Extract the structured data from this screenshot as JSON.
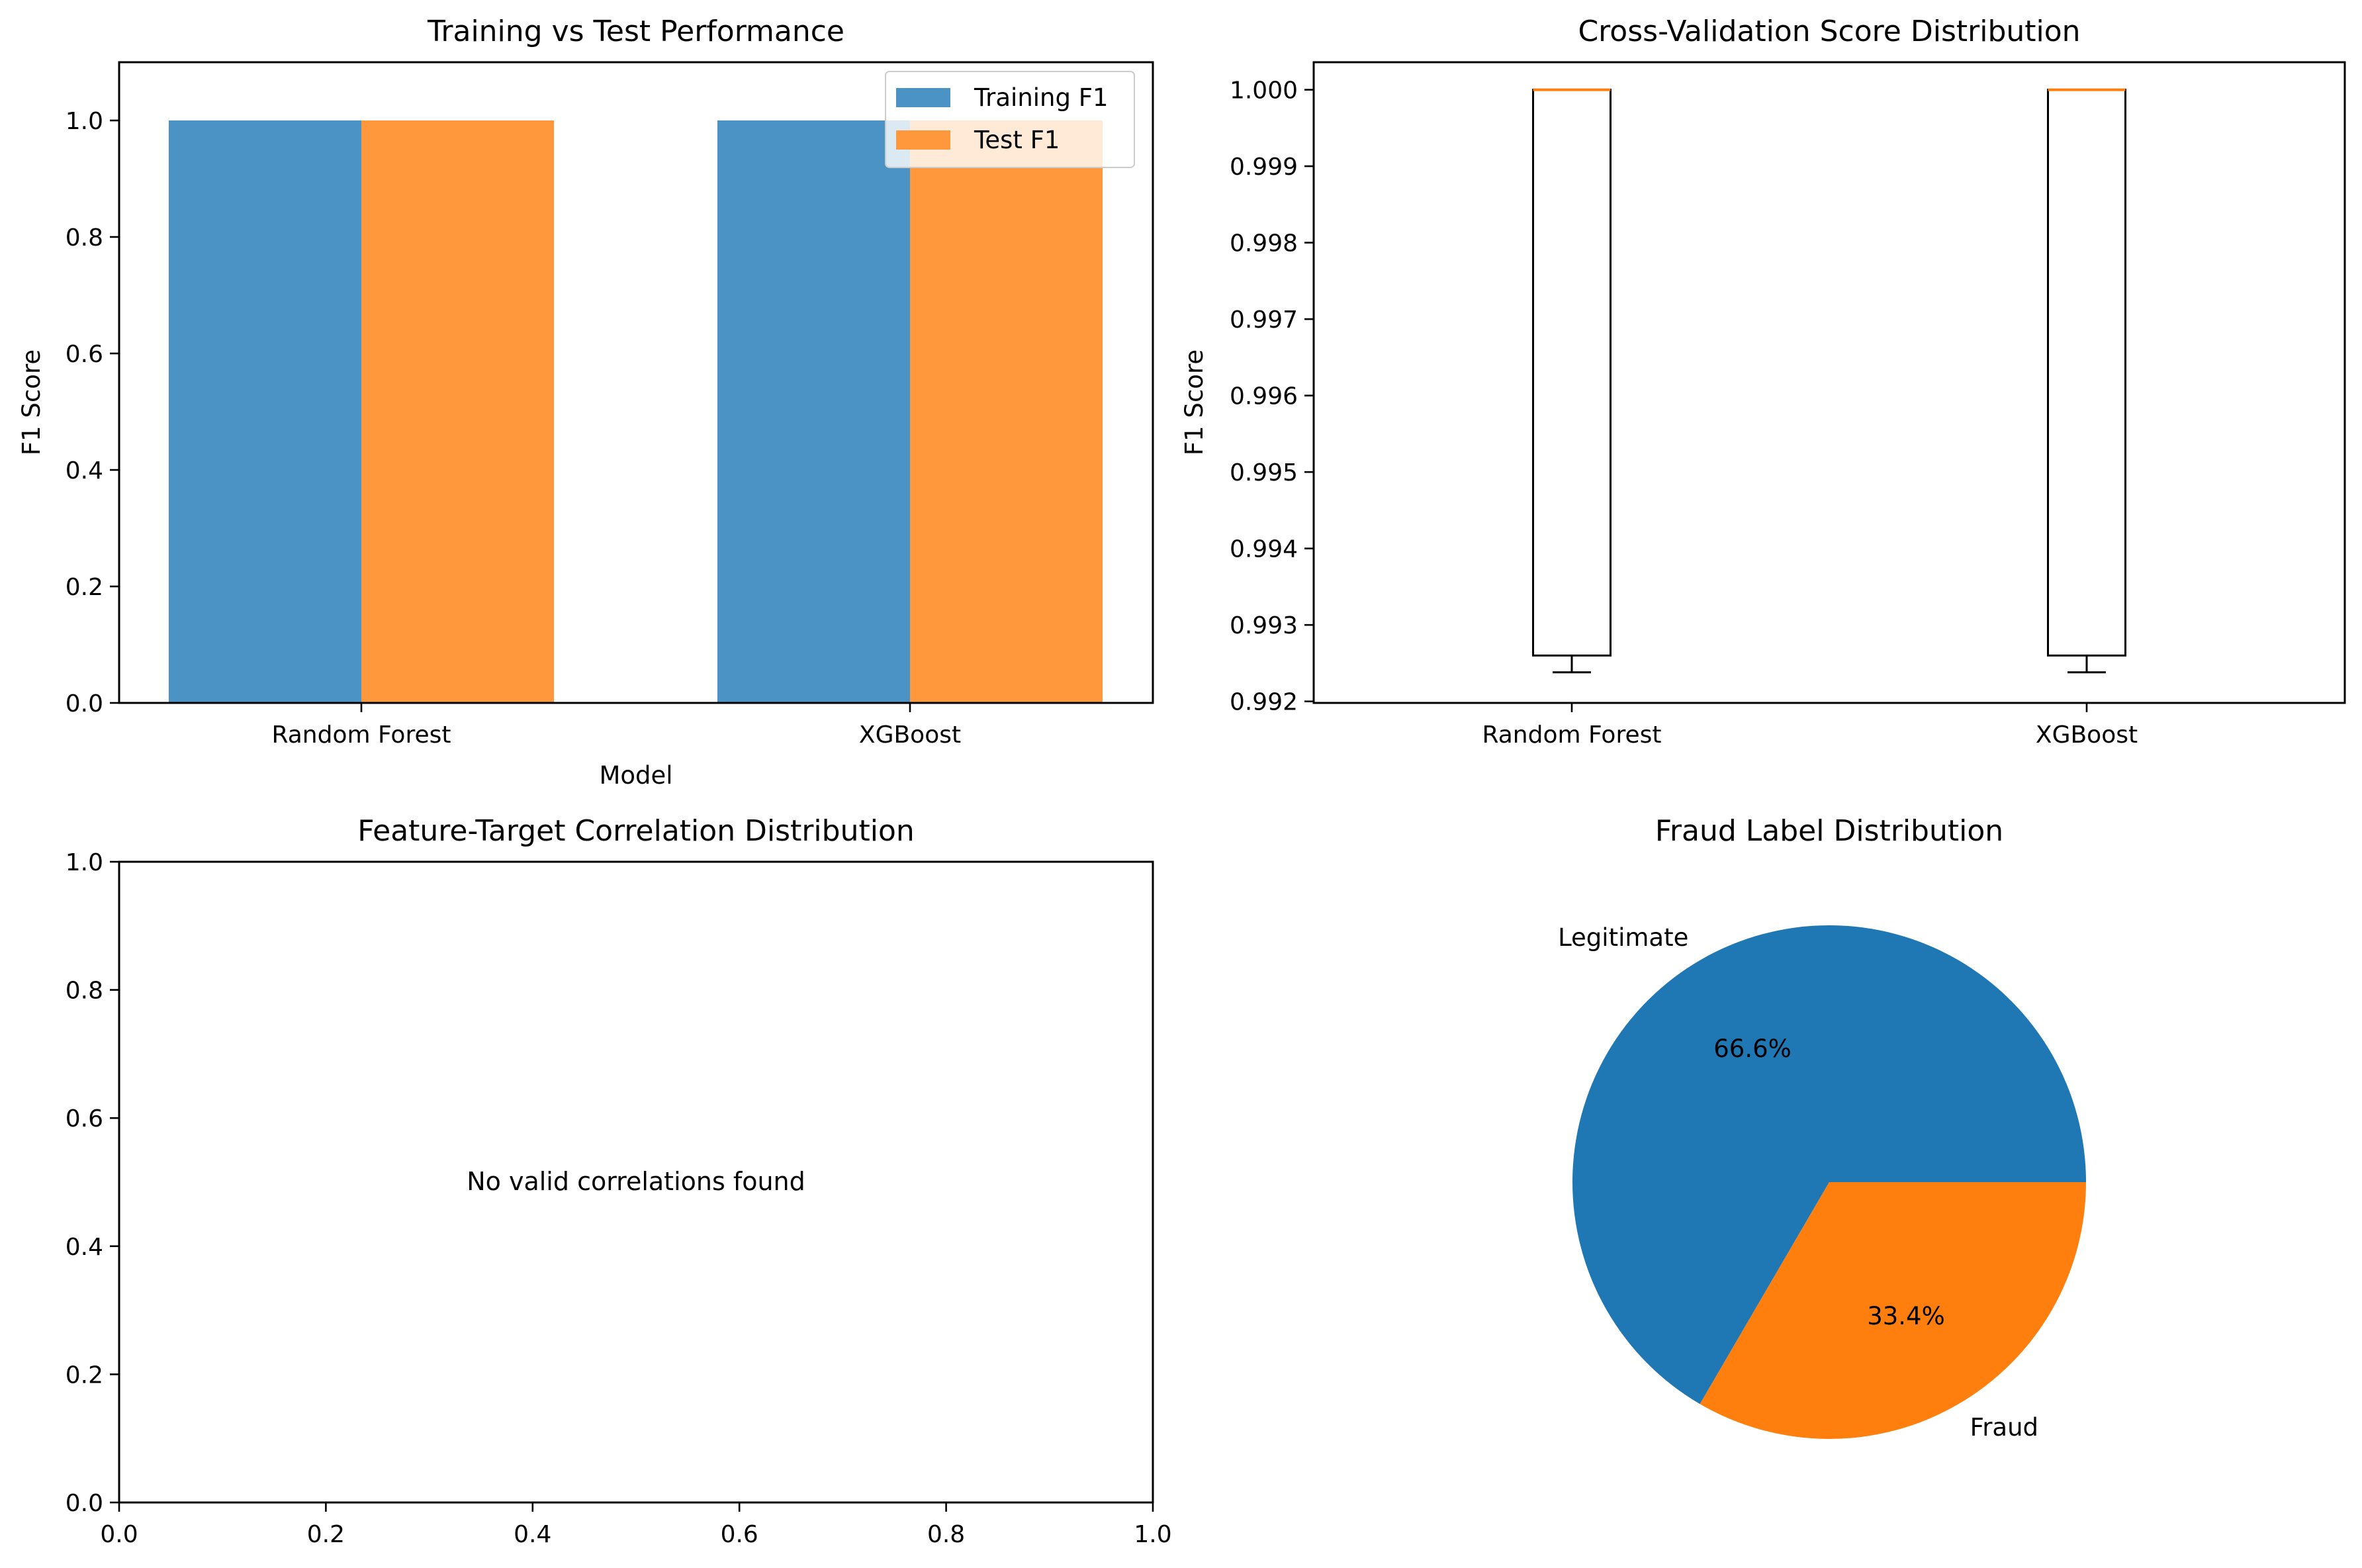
{
  "figure": {
    "colors": {
      "training": "#4b93c4",
      "test": "#ff983d",
      "legitimate": "#1f77b4",
      "fraud": "#ff7f0e",
      "median": "#ff7f0e"
    }
  },
  "chart_data": [
    {
      "id": "bar",
      "type": "bar",
      "title": "Training vs Test Performance",
      "xlabel": "Model",
      "ylabel": "F1 Score",
      "categories": [
        "Random Forest",
        "XGBoost"
      ],
      "series": [
        {
          "name": "Training F1",
          "values": [
            1.0,
            1.0
          ]
        },
        {
          "name": "Test F1",
          "values": [
            1.0,
            1.0
          ]
        }
      ],
      "ylim": [
        0,
        1.1
      ],
      "yticks": [
        "0.0",
        "0.2",
        "0.4",
        "0.6",
        "0.8",
        "1.0"
      ],
      "legend": "top-right",
      "grid": false
    },
    {
      "id": "box",
      "type": "box",
      "title": "Cross-Validation Score Distribution",
      "ylabel": "F1 Score",
      "categories": [
        "Random Forest",
        "XGBoost"
      ],
      "boxes": [
        {
          "whisker_low": 0.99238,
          "q1": 0.9926,
          "median": 1.0,
          "q3": 1.0,
          "whisker_high": 1.0
        },
        {
          "whisker_low": 0.99238,
          "q1": 0.9926,
          "median": 1.0,
          "q3": 1.0,
          "whisker_high": 1.0
        }
      ],
      "ylim": [
        0.99198,
        1.00036
      ],
      "yticks": [
        "0.992",
        "0.993",
        "0.994",
        "0.995",
        "0.996",
        "0.997",
        "0.998",
        "0.999",
        "1.000"
      ],
      "grid": false
    },
    {
      "id": "corr",
      "type": "empty",
      "title": "Feature-Target Correlation Distribution",
      "message": "No valid correlations found",
      "xlim": [
        0,
        1
      ],
      "ylim": [
        0,
        1
      ],
      "xticks": [
        "0.0",
        "0.2",
        "0.4",
        "0.6",
        "0.8",
        "1.0"
      ],
      "yticks": [
        "0.0",
        "0.2",
        "0.4",
        "0.6",
        "0.8",
        "1.0"
      ]
    },
    {
      "id": "pie",
      "type": "pie",
      "title": "Fraud Label Distribution",
      "slices": [
        {
          "label": "Legitimate",
          "value": 66.6,
          "pct_label": "66.6%"
        },
        {
          "label": "Fraud",
          "value": 33.4,
          "pct_label": "33.4%"
        }
      ]
    }
  ]
}
